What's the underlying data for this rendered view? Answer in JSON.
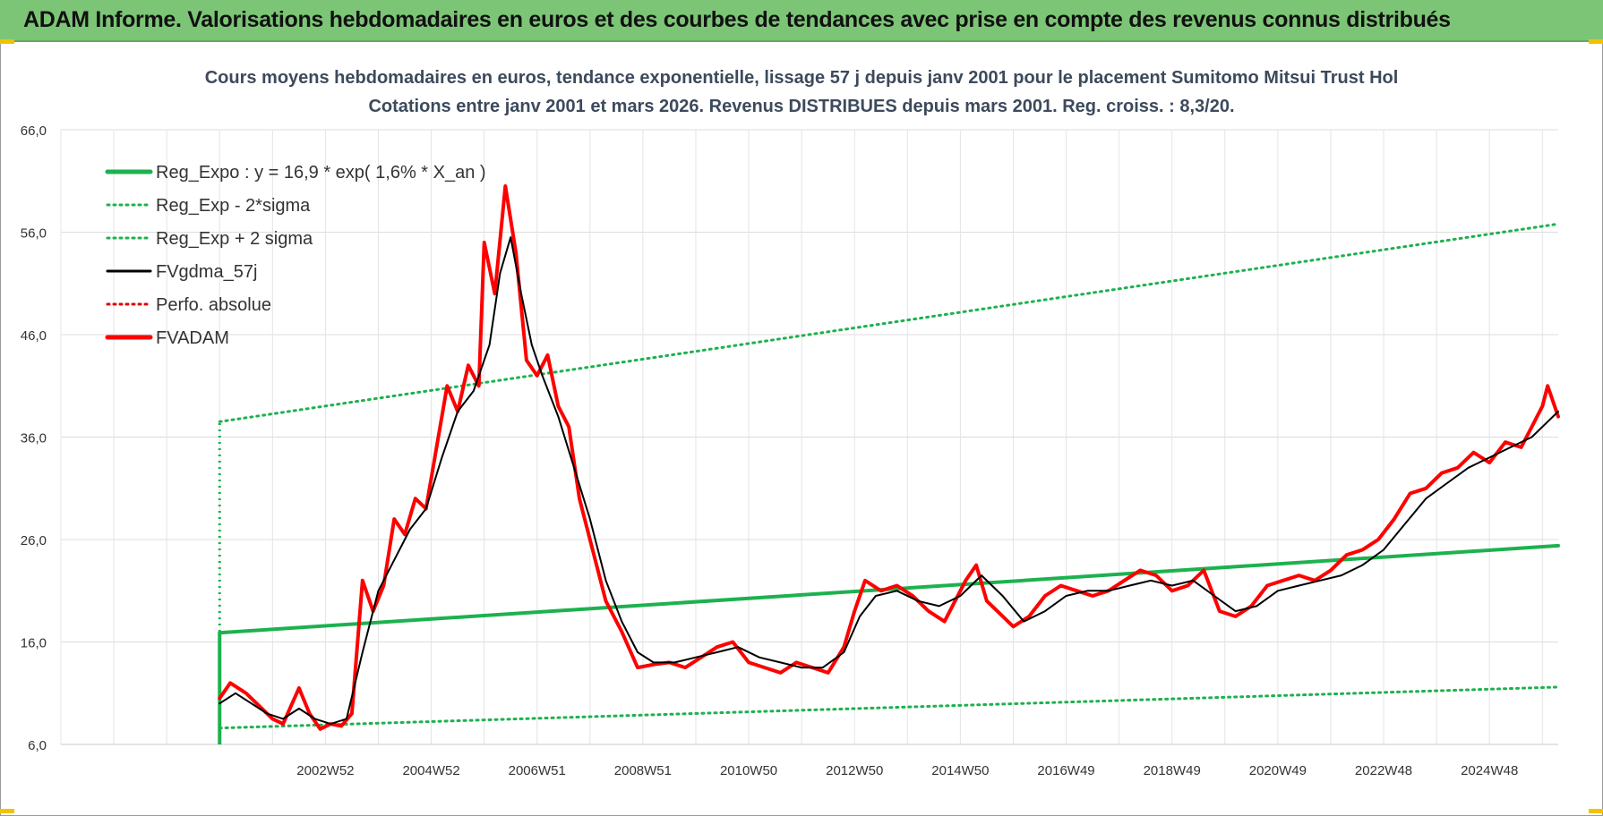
{
  "banner": {
    "title": "ADAM Informe. Valorisations hebdomadaires en euros et des courbes de tendances avec prise en compte des revenus connus distribués"
  },
  "colors": {
    "banner_bg": "#7cc576",
    "trend": "#1db14f",
    "sigma": "#1db14f",
    "gdma": "#000000",
    "perfo": "#e00000",
    "adam": "#ff0000",
    "title_text": "#3d4a5c"
  },
  "chart_data": {
    "type": "line",
    "title_line1": "Cours moyens hebdomadaires en euros, tendance exponentielle, lissage 57 j depuis janv 2001 pour le placement Sumitomo Mitsui Trust Hol",
    "title_line2": "Cotations entre janv 2001 et mars 2026. Revenus DISTRIBUES depuis mars 2001. Reg. croiss. : 8,3/20.",
    "xlabel": "",
    "ylabel": "",
    "xlim": [
      1998.0,
      2026.3
    ],
    "ylim": [
      6.0,
      66.0
    ],
    "y_ticks": [
      "66,0",
      "56,0",
      "46,0",
      "36,0",
      "26,0",
      "16,0",
      "6,0"
    ],
    "y_tick_values": [
      66,
      56,
      46,
      36,
      26,
      16,
      6
    ],
    "x_ticks": [
      "2002W52",
      "2004W52",
      "2006W51",
      "2008W51",
      "2010W50",
      "2012W50",
      "2014W50",
      "2016W49",
      "2018W49",
      "2020W49",
      "2022W48",
      "2024W48"
    ],
    "x_tick_values": [
      2003.0,
      2005.0,
      2007.0,
      2009.0,
      2011.0,
      2013.0,
      2015.0,
      2017.0,
      2019.0,
      2021.0,
      2023.0,
      2025.0
    ],
    "grid": true,
    "legend_position": "top-left",
    "legend": [
      {
        "name": "Reg_Expo : y = 16,9 * exp( 1,6% *  X_an )",
        "style": "solid-thick",
        "color": "#1db14f"
      },
      {
        "name": "Reg_Exp - 2*sigma",
        "style": "dotted",
        "color": "#1db14f"
      },
      {
        "name": "Reg_Exp + 2 sigma",
        "style": "dotted",
        "color": "#1db14f"
      },
      {
        "name": "FVgdma_57j",
        "style": "solid",
        "color": "#000000"
      },
      {
        "name": "Perfo. absolue",
        "style": "dotted",
        "color": "#e00000"
      },
      {
        "name": "FVADAM",
        "style": "solid-thick",
        "color": "#ff0000"
      }
    ],
    "series": [
      {
        "name": "Reg_Expo : y = 16,9 * exp( 1,6% *  X_an )",
        "x": [
          2001.0,
          2026.3
        ],
        "y": [
          16.9,
          25.4
        ]
      },
      {
        "name": "Reg_Exp - 2*sigma",
        "x": [
          2001.0,
          2026.3
        ],
        "y": [
          7.6,
          11.6
        ]
      },
      {
        "name": "Reg_Exp + 2 sigma",
        "x": [
          2001.0,
          2026.3
        ],
        "y": [
          37.5,
          56.8
        ]
      },
      {
        "name": "FVADAM",
        "x": [
          2001.0,
          2001.2,
          2001.5,
          2001.8,
          2002.0,
          2002.2,
          2002.5,
          2002.7,
          2002.9,
          2003.1,
          2003.3,
          2003.5,
          2003.7,
          2003.9,
          2004.1,
          2004.3,
          2004.5,
          2004.7,
          2004.9,
          2005.1,
          2005.3,
          2005.5,
          2005.7,
          2005.9,
          2006.0,
          2006.2,
          2006.4,
          2006.6,
          2006.8,
          2007.0,
          2007.2,
          2007.4,
          2007.6,
          2007.8,
          2008.0,
          2008.3,
          2008.6,
          2008.9,
          2009.2,
          2009.5,
          2009.8,
          2010.1,
          2010.4,
          2010.7,
          2011.0,
          2011.3,
          2011.6,
          2011.9,
          2012.2,
          2012.5,
          2012.8,
          2013.0,
          2013.2,
          2013.5,
          2013.8,
          2014.1,
          2014.4,
          2014.7,
          2014.9,
          2015.1,
          2015.3,
          2015.5,
          2015.7,
          2016.0,
          2016.3,
          2016.6,
          2016.9,
          2017.2,
          2017.5,
          2017.8,
          2018.1,
          2018.4,
          2018.7,
          2019.0,
          2019.3,
          2019.6,
          2019.9,
          2020.2,
          2020.5,
          2020.8,
          2021.1,
          2021.4,
          2021.7,
          2022.0,
          2022.3,
          2022.6,
          2022.9,
          2023.2,
          2023.5,
          2023.8,
          2024.1,
          2024.4,
          2024.7,
          2025.0,
          2025.3,
          2025.6,
          2025.8,
          2026.0,
          2026.1,
          2026.3
        ],
        "y": [
          10.5,
          12.0,
          11.0,
          9.5,
          8.5,
          8.0,
          11.5,
          9.0,
          7.5,
          8.0,
          7.8,
          9.0,
          22.0,
          19.0,
          21.5,
          28.0,
          26.5,
          30.0,
          29.0,
          35.0,
          41.0,
          38.5,
          43.0,
          41.0,
          55.0,
          50.0,
          60.5,
          54.0,
          43.5,
          42.0,
          44.0,
          39.0,
          37.0,
          30.0,
          26.0,
          20.0,
          17.0,
          13.5,
          13.8,
          14.0,
          13.5,
          14.5,
          15.5,
          16.0,
          14.0,
          13.5,
          13.0,
          14.0,
          13.5,
          13.0,
          15.5,
          19.0,
          22.0,
          21.0,
          21.5,
          20.5,
          19.0,
          18.0,
          20.0,
          22.0,
          23.5,
          20.0,
          19.0,
          17.5,
          18.5,
          20.5,
          21.5,
          21.0,
          20.5,
          21.0,
          22.0,
          23.0,
          22.5,
          21.0,
          21.5,
          23.0,
          19.0,
          18.5,
          19.5,
          21.5,
          22.0,
          22.5,
          22.0,
          23.0,
          24.5,
          25.0,
          26.0,
          28.0,
          30.5,
          31.0,
          32.5,
          33.0,
          34.5,
          33.5,
          35.5,
          35.0,
          37.0,
          39.0,
          41.0,
          38.0
        ]
      },
      {
        "name": "FVgdma_57j",
        "x": [
          2001.0,
          2001.3,
          2001.6,
          2001.9,
          2002.2,
          2002.5,
          2002.8,
          2003.1,
          2003.4,
          2003.7,
          2004.0,
          2004.3,
          2004.6,
          2004.9,
          2005.2,
          2005.5,
          2005.8,
          2006.1,
          2006.3,
          2006.5,
          2006.7,
          2006.9,
          2007.1,
          2007.4,
          2007.7,
          2008.0,
          2008.3,
          2008.6,
          2008.9,
          2009.2,
          2009.6,
          2010.0,
          2010.4,
          2010.8,
          2011.2,
          2011.6,
          2012.0,
          2012.4,
          2012.8,
          2013.1,
          2013.4,
          2013.8,
          2014.2,
          2014.6,
          2015.0,
          2015.4,
          2015.8,
          2016.2,
          2016.6,
          2017.0,
          2017.4,
          2017.8,
          2018.2,
          2018.6,
          2019.0,
          2019.4,
          2019.8,
          2020.2,
          2020.6,
          2021.0,
          2021.4,
          2021.8,
          2022.2,
          2022.6,
          2023.0,
          2023.4,
          2023.8,
          2024.2,
          2024.6,
          2025.0,
          2025.4,
          2025.8,
          2026.1,
          2026.3
        ],
        "y": [
          10.0,
          11.0,
          10.0,
          9.0,
          8.5,
          9.5,
          8.5,
          8.0,
          8.5,
          15.0,
          21.0,
          24.0,
          27.0,
          29.0,
          34.0,
          38.5,
          40.5,
          45.0,
          52.0,
          55.5,
          50.0,
          45.0,
          42.0,
          38.0,
          33.0,
          28.0,
          22.0,
          18.0,
          15.0,
          14.0,
          14.0,
          14.5,
          15.0,
          15.5,
          14.5,
          14.0,
          13.5,
          13.5,
          15.0,
          18.5,
          20.5,
          21.0,
          20.0,
          19.5,
          20.5,
          22.5,
          20.5,
          18.0,
          19.0,
          20.5,
          21.0,
          21.0,
          21.5,
          22.0,
          21.5,
          22.0,
          20.5,
          19.0,
          19.5,
          21.0,
          21.5,
          22.0,
          22.5,
          23.5,
          25.0,
          27.5,
          30.0,
          31.5,
          33.0,
          34.0,
          35.0,
          36.0,
          37.5,
          38.5
        ]
      }
    ]
  }
}
